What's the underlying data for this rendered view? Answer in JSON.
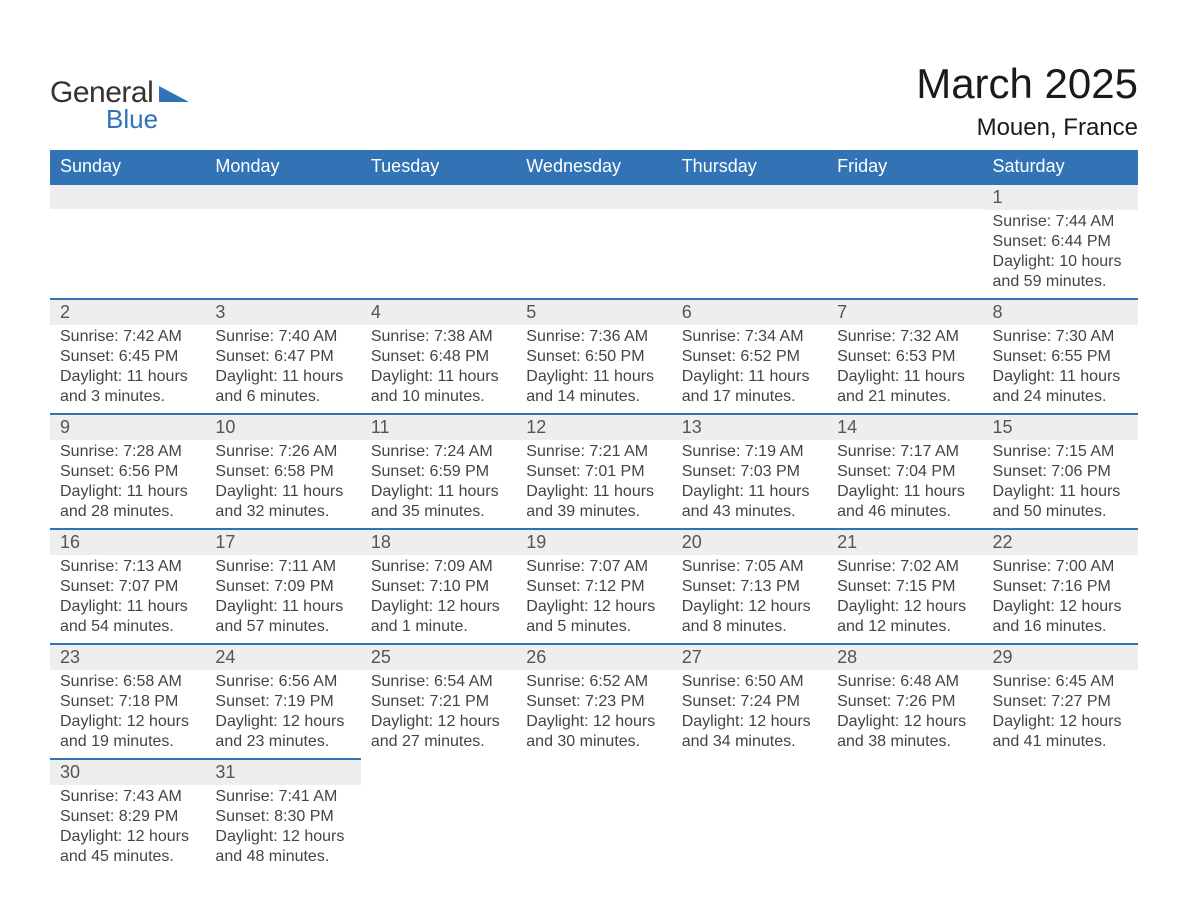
{
  "logo": {
    "text1": "General",
    "text2": "Blue",
    "tri_color": "#3173b4"
  },
  "title": "March 2025",
  "location": "Mouen, France",
  "colors": {
    "header_bg": "#3173b4",
    "header_text": "#ffffff",
    "strip_bg": "#eeeeee",
    "strip_border": "#3173b4",
    "body_text": "#444444",
    "daynum_text": "#555555",
    "background": "#ffffff"
  },
  "day_headers": [
    "Sunday",
    "Monday",
    "Tuesday",
    "Wednesday",
    "Thursday",
    "Friday",
    "Saturday"
  ],
  "weeks": [
    [
      null,
      null,
      null,
      null,
      null,
      null,
      {
        "n": "1",
        "sunrise": "Sunrise: 7:44 AM",
        "sunset": "Sunset: 6:44 PM",
        "daylight": "Daylight: 10 hours and 59 minutes."
      }
    ],
    [
      {
        "n": "2",
        "sunrise": "Sunrise: 7:42 AM",
        "sunset": "Sunset: 6:45 PM",
        "daylight": "Daylight: 11 hours and 3 minutes."
      },
      {
        "n": "3",
        "sunrise": "Sunrise: 7:40 AM",
        "sunset": "Sunset: 6:47 PM",
        "daylight": "Daylight: 11 hours and 6 minutes."
      },
      {
        "n": "4",
        "sunrise": "Sunrise: 7:38 AM",
        "sunset": "Sunset: 6:48 PM",
        "daylight": "Daylight: 11 hours and 10 minutes."
      },
      {
        "n": "5",
        "sunrise": "Sunrise: 7:36 AM",
        "sunset": "Sunset: 6:50 PM",
        "daylight": "Daylight: 11 hours and 14 minutes."
      },
      {
        "n": "6",
        "sunrise": "Sunrise: 7:34 AM",
        "sunset": "Sunset: 6:52 PM",
        "daylight": "Daylight: 11 hours and 17 minutes."
      },
      {
        "n": "7",
        "sunrise": "Sunrise: 7:32 AM",
        "sunset": "Sunset: 6:53 PM",
        "daylight": "Daylight: 11 hours and 21 minutes."
      },
      {
        "n": "8",
        "sunrise": "Sunrise: 7:30 AM",
        "sunset": "Sunset: 6:55 PM",
        "daylight": "Daylight: 11 hours and 24 minutes."
      }
    ],
    [
      {
        "n": "9",
        "sunrise": "Sunrise: 7:28 AM",
        "sunset": "Sunset: 6:56 PM",
        "daylight": "Daylight: 11 hours and 28 minutes."
      },
      {
        "n": "10",
        "sunrise": "Sunrise: 7:26 AM",
        "sunset": "Sunset: 6:58 PM",
        "daylight": "Daylight: 11 hours and 32 minutes."
      },
      {
        "n": "11",
        "sunrise": "Sunrise: 7:24 AM",
        "sunset": "Sunset: 6:59 PM",
        "daylight": "Daylight: 11 hours and 35 minutes."
      },
      {
        "n": "12",
        "sunrise": "Sunrise: 7:21 AM",
        "sunset": "Sunset: 7:01 PM",
        "daylight": "Daylight: 11 hours and 39 minutes."
      },
      {
        "n": "13",
        "sunrise": "Sunrise: 7:19 AM",
        "sunset": "Sunset: 7:03 PM",
        "daylight": "Daylight: 11 hours and 43 minutes."
      },
      {
        "n": "14",
        "sunrise": "Sunrise: 7:17 AM",
        "sunset": "Sunset: 7:04 PM",
        "daylight": "Daylight: 11 hours and 46 minutes."
      },
      {
        "n": "15",
        "sunrise": "Sunrise: 7:15 AM",
        "sunset": "Sunset: 7:06 PM",
        "daylight": "Daylight: 11 hours and 50 minutes."
      }
    ],
    [
      {
        "n": "16",
        "sunrise": "Sunrise: 7:13 AM",
        "sunset": "Sunset: 7:07 PM",
        "daylight": "Daylight: 11 hours and 54 minutes."
      },
      {
        "n": "17",
        "sunrise": "Sunrise: 7:11 AM",
        "sunset": "Sunset: 7:09 PM",
        "daylight": "Daylight: 11 hours and 57 minutes."
      },
      {
        "n": "18",
        "sunrise": "Sunrise: 7:09 AM",
        "sunset": "Sunset: 7:10 PM",
        "daylight": "Daylight: 12 hours and 1 minute."
      },
      {
        "n": "19",
        "sunrise": "Sunrise: 7:07 AM",
        "sunset": "Sunset: 7:12 PM",
        "daylight": "Daylight: 12 hours and 5 minutes."
      },
      {
        "n": "20",
        "sunrise": "Sunrise: 7:05 AM",
        "sunset": "Sunset: 7:13 PM",
        "daylight": "Daylight: 12 hours and 8 minutes."
      },
      {
        "n": "21",
        "sunrise": "Sunrise: 7:02 AM",
        "sunset": "Sunset: 7:15 PM",
        "daylight": "Daylight: 12 hours and 12 minutes."
      },
      {
        "n": "22",
        "sunrise": "Sunrise: 7:00 AM",
        "sunset": "Sunset: 7:16 PM",
        "daylight": "Daylight: 12 hours and 16 minutes."
      }
    ],
    [
      {
        "n": "23",
        "sunrise": "Sunrise: 6:58 AM",
        "sunset": "Sunset: 7:18 PM",
        "daylight": "Daylight: 12 hours and 19 minutes."
      },
      {
        "n": "24",
        "sunrise": "Sunrise: 6:56 AM",
        "sunset": "Sunset: 7:19 PM",
        "daylight": "Daylight: 12 hours and 23 minutes."
      },
      {
        "n": "25",
        "sunrise": "Sunrise: 6:54 AM",
        "sunset": "Sunset: 7:21 PM",
        "daylight": "Daylight: 12 hours and 27 minutes."
      },
      {
        "n": "26",
        "sunrise": "Sunrise: 6:52 AM",
        "sunset": "Sunset: 7:23 PM",
        "daylight": "Daylight: 12 hours and 30 minutes."
      },
      {
        "n": "27",
        "sunrise": "Sunrise: 6:50 AM",
        "sunset": "Sunset: 7:24 PM",
        "daylight": "Daylight: 12 hours and 34 minutes."
      },
      {
        "n": "28",
        "sunrise": "Sunrise: 6:48 AM",
        "sunset": "Sunset: 7:26 PM",
        "daylight": "Daylight: 12 hours and 38 minutes."
      },
      {
        "n": "29",
        "sunrise": "Sunrise: 6:45 AM",
        "sunset": "Sunset: 7:27 PM",
        "daylight": "Daylight: 12 hours and 41 minutes."
      }
    ],
    [
      {
        "n": "30",
        "sunrise": "Sunrise: 7:43 AM",
        "sunset": "Sunset: 8:29 PM",
        "daylight": "Daylight: 12 hours and 45 minutes."
      },
      {
        "n": "31",
        "sunrise": "Sunrise: 7:41 AM",
        "sunset": "Sunset: 8:30 PM",
        "daylight": "Daylight: 12 hours and 48 minutes."
      },
      null,
      null,
      null,
      null,
      null
    ]
  ]
}
